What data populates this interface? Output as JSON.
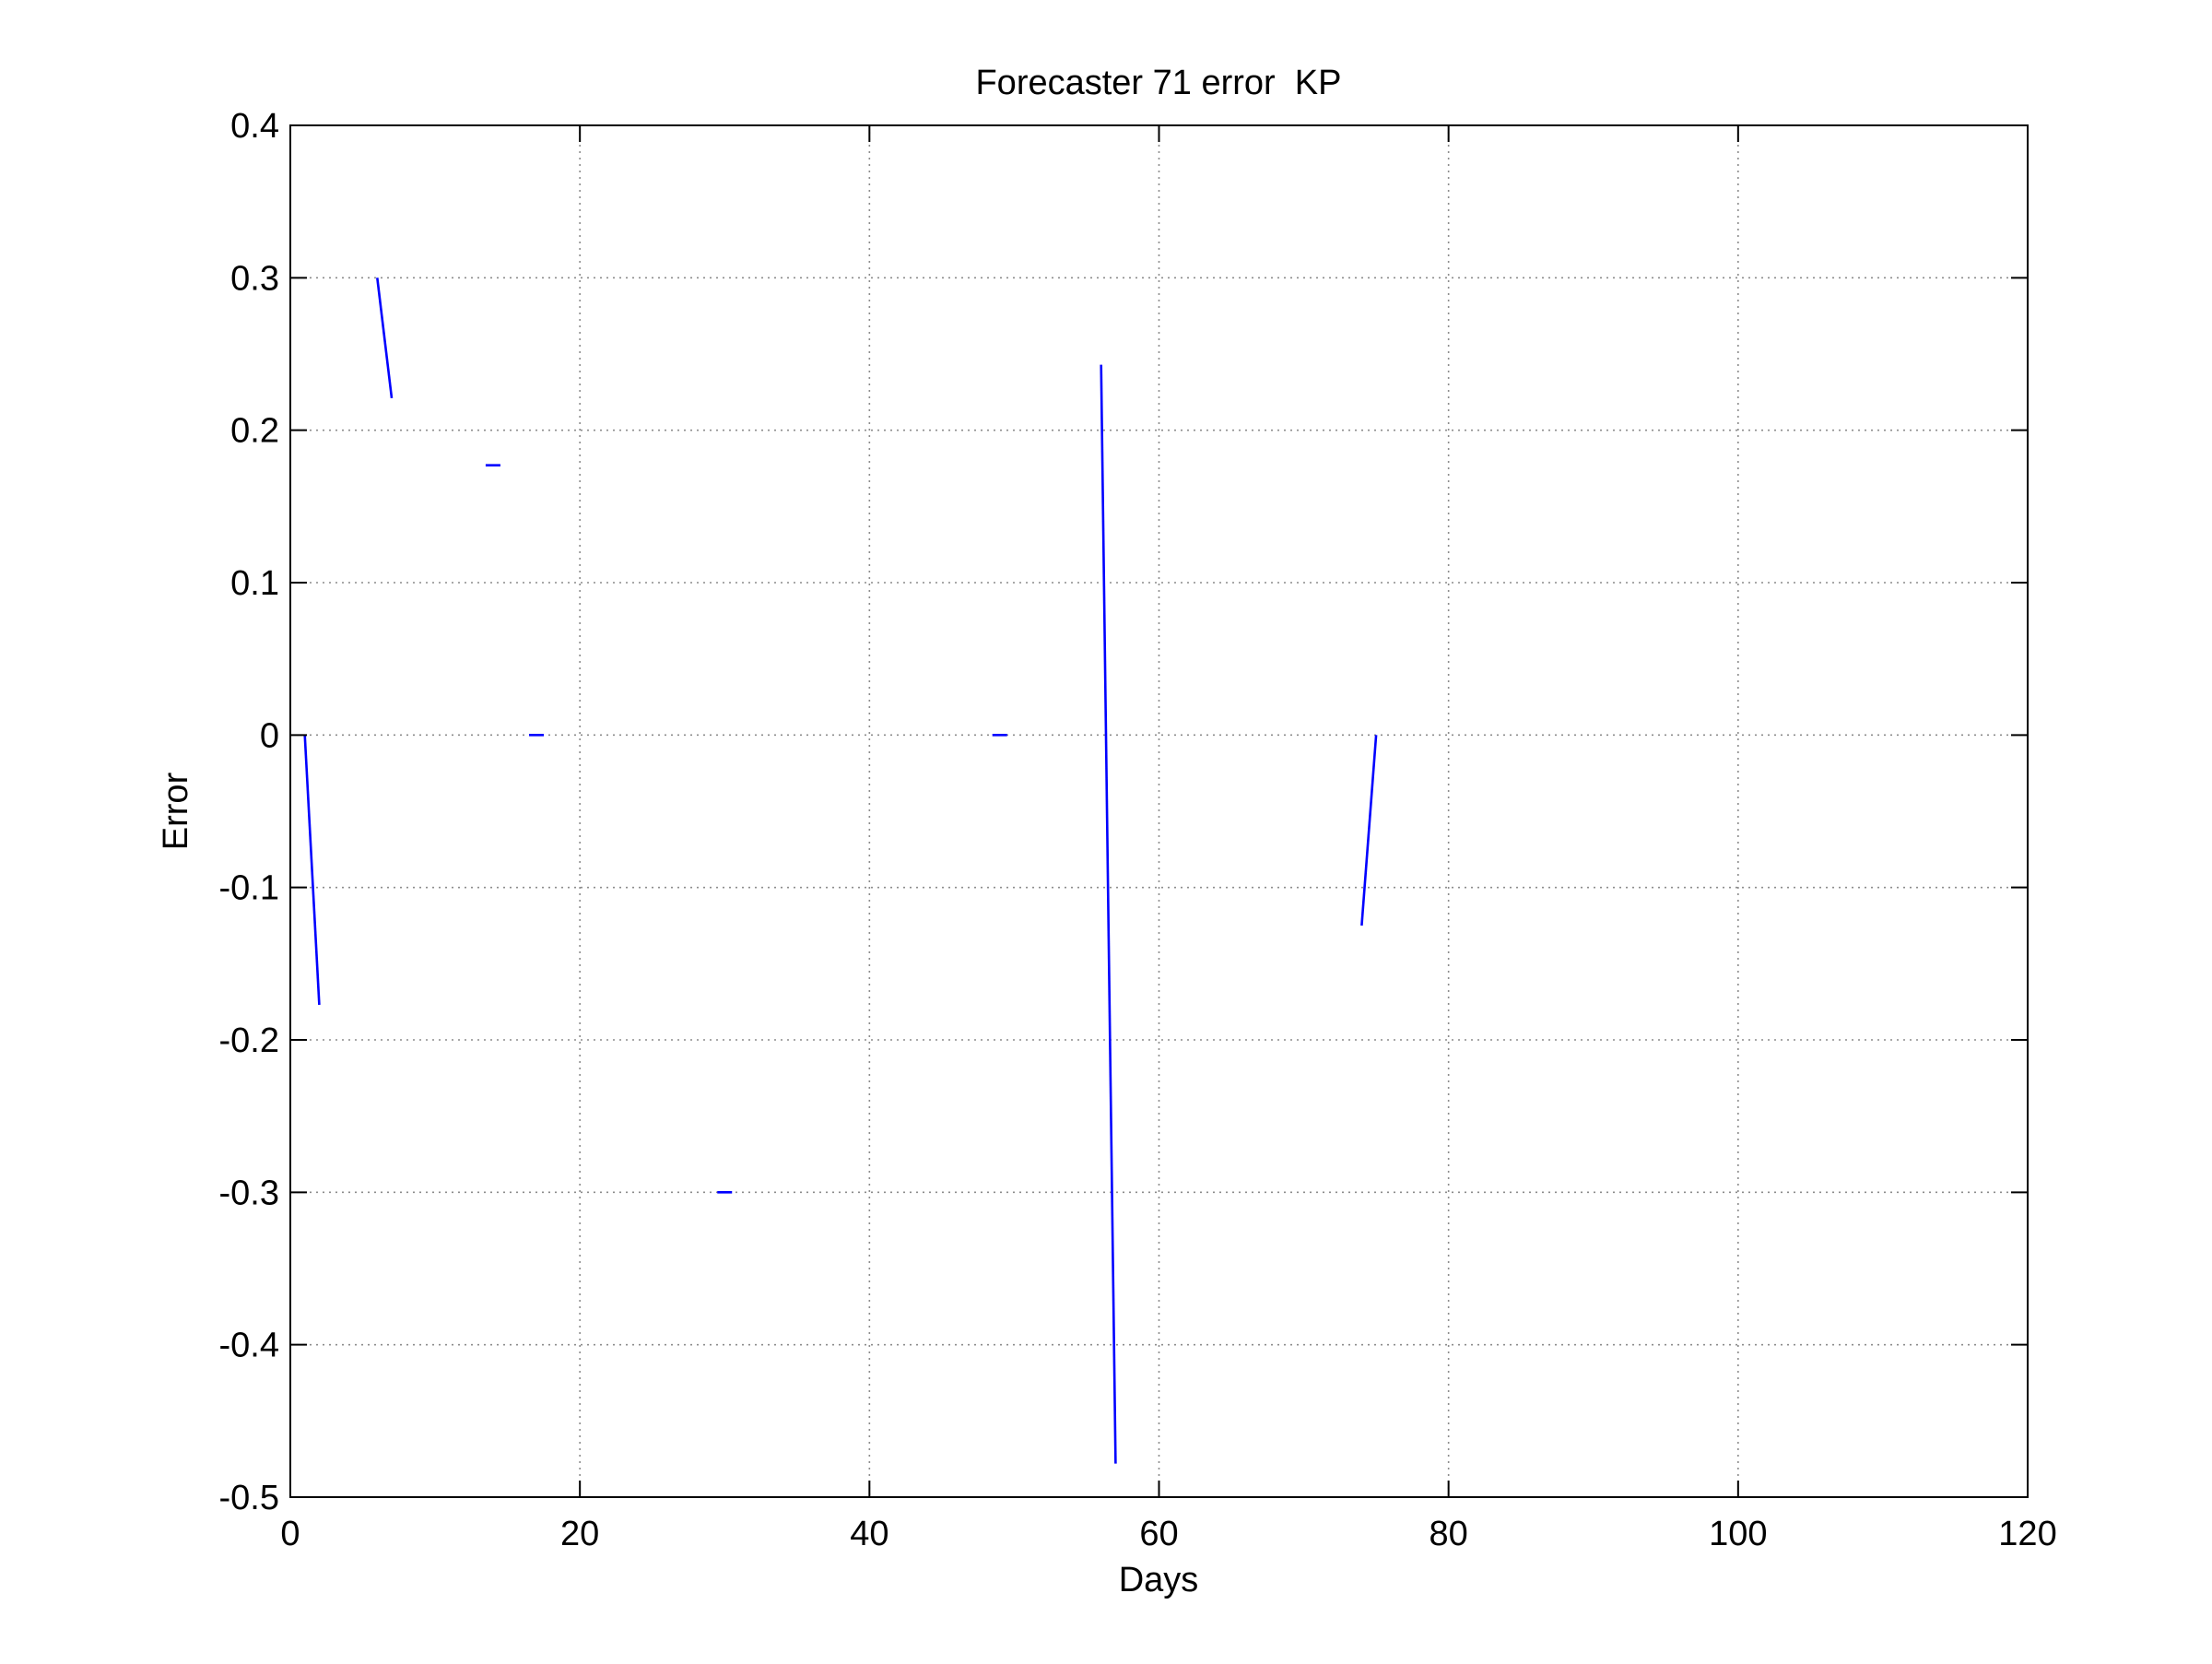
{
  "chart_data": {
    "type": "line",
    "title": "Forecaster 71 error  KP",
    "xlabel": "Days",
    "ylabel": "Error",
    "xlim": [
      0,
      120
    ],
    "ylim": [
      -0.5,
      0.4
    ],
    "xticks": [
      0,
      20,
      40,
      60,
      80,
      100,
      120
    ],
    "xtick_labels": [
      "0",
      "20",
      "40",
      "60",
      "80",
      "100",
      "120"
    ],
    "yticks": [
      -0.5,
      -0.4,
      -0.3,
      -0.2,
      -0.1,
      0,
      0.1,
      0.2,
      0.3,
      0.4
    ],
    "ytick_labels": [
      "-0.5",
      "-0.4",
      "-0.3",
      "-0.2",
      "-0.1",
      "0",
      "0.1",
      "0.2",
      "0.3",
      "0.4"
    ],
    "grid": true,
    "series": [
      {
        "color": "#0000ff",
        "x": [
          1,
          2,
          3,
          4,
          5,
          6,
          7,
          8,
          9,
          10,
          11,
          12,
          13,
          14,
          15,
          16,
          17,
          18,
          19,
          20,
          21,
          22,
          23,
          24,
          25,
          26,
          27,
          28,
          29,
          30,
          31,
          32,
          33,
          34,
          35,
          36,
          37,
          38,
          39,
          40,
          41,
          42,
          43,
          44,
          45,
          46,
          47,
          48,
          49,
          50,
          51,
          52,
          53,
          54,
          55,
          56,
          57,
          58,
          59,
          60,
          61,
          62,
          63,
          64,
          65,
          66,
          67,
          68,
          69,
          70,
          71,
          72,
          73,
          74,
          75,
          76
        ],
        "y": [
          0,
          -0.177,
          null,
          null,
          null,
          0.3,
          0.221,
          null,
          null,
          null,
          null,
          null,
          null,
          0.177,
          null,
          null,
          0,
          null,
          null,
          null,
          null,
          null,
          null,
          null,
          null,
          null,
          null,
          null,
          null,
          -0.3,
          null,
          null,
          null,
          null,
          null,
          null,
          null,
          null,
          null,
          null,
          null,
          null,
          null,
          null,
          null,
          null,
          null,
          null,
          0,
          null,
          null,
          null,
          null,
          null,
          null,
          0.243,
          -0.478,
          null,
          null,
          null,
          null,
          null,
          null,
          null,
          null,
          null,
          null,
          null,
          null,
          null,
          null,
          null,
          null,
          -0.125,
          0,
          null
        ]
      }
    ]
  }
}
